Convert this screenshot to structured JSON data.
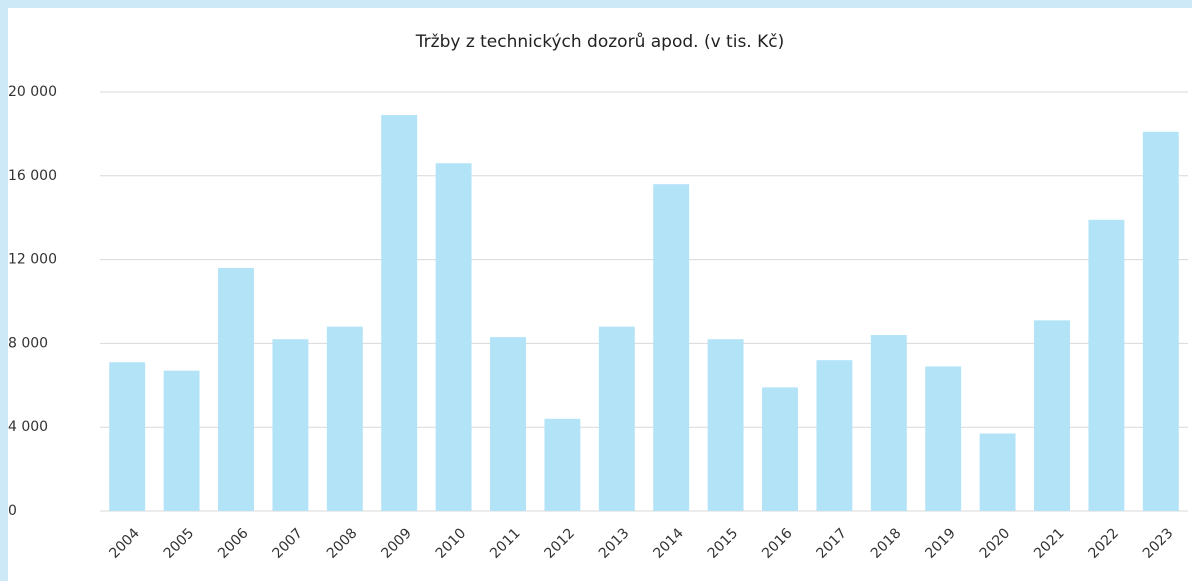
{
  "chart_data": {
    "type": "bar",
    "title": "Tržby z technických dozorů apod. (v tis. Kč)",
    "categories": [
      "2004",
      "2005",
      "2006",
      "2007",
      "2008",
      "2009",
      "2010",
      "2011",
      "2012",
      "2013",
      "2014",
      "2015",
      "2016",
      "2017",
      "2018",
      "2019",
      "2020",
      "2021",
      "2022",
      "2023"
    ],
    "values": [
      7100,
      6700,
      11600,
      8200,
      8800,
      18900,
      16600,
      8300,
      4400,
      8800,
      15600,
      8200,
      5900,
      7200,
      8400,
      6900,
      3700,
      9100,
      13900,
      18100
    ],
    "color": "#b3e3f7",
    "ylim": [
      0,
      20000
    ],
    "yticks": [
      0,
      {
        "value": 4000,
        "label": "4 000"
      },
      {
        "value": 8000,
        "label": "8 000"
      },
      {
        "value": 12000,
        "label": "12 000"
      },
      {
        "value": 16000,
        "label": "16 000"
      },
      {
        "value": 20000,
        "label": "20 000"
      }
    ],
    "grid": true
  }
}
